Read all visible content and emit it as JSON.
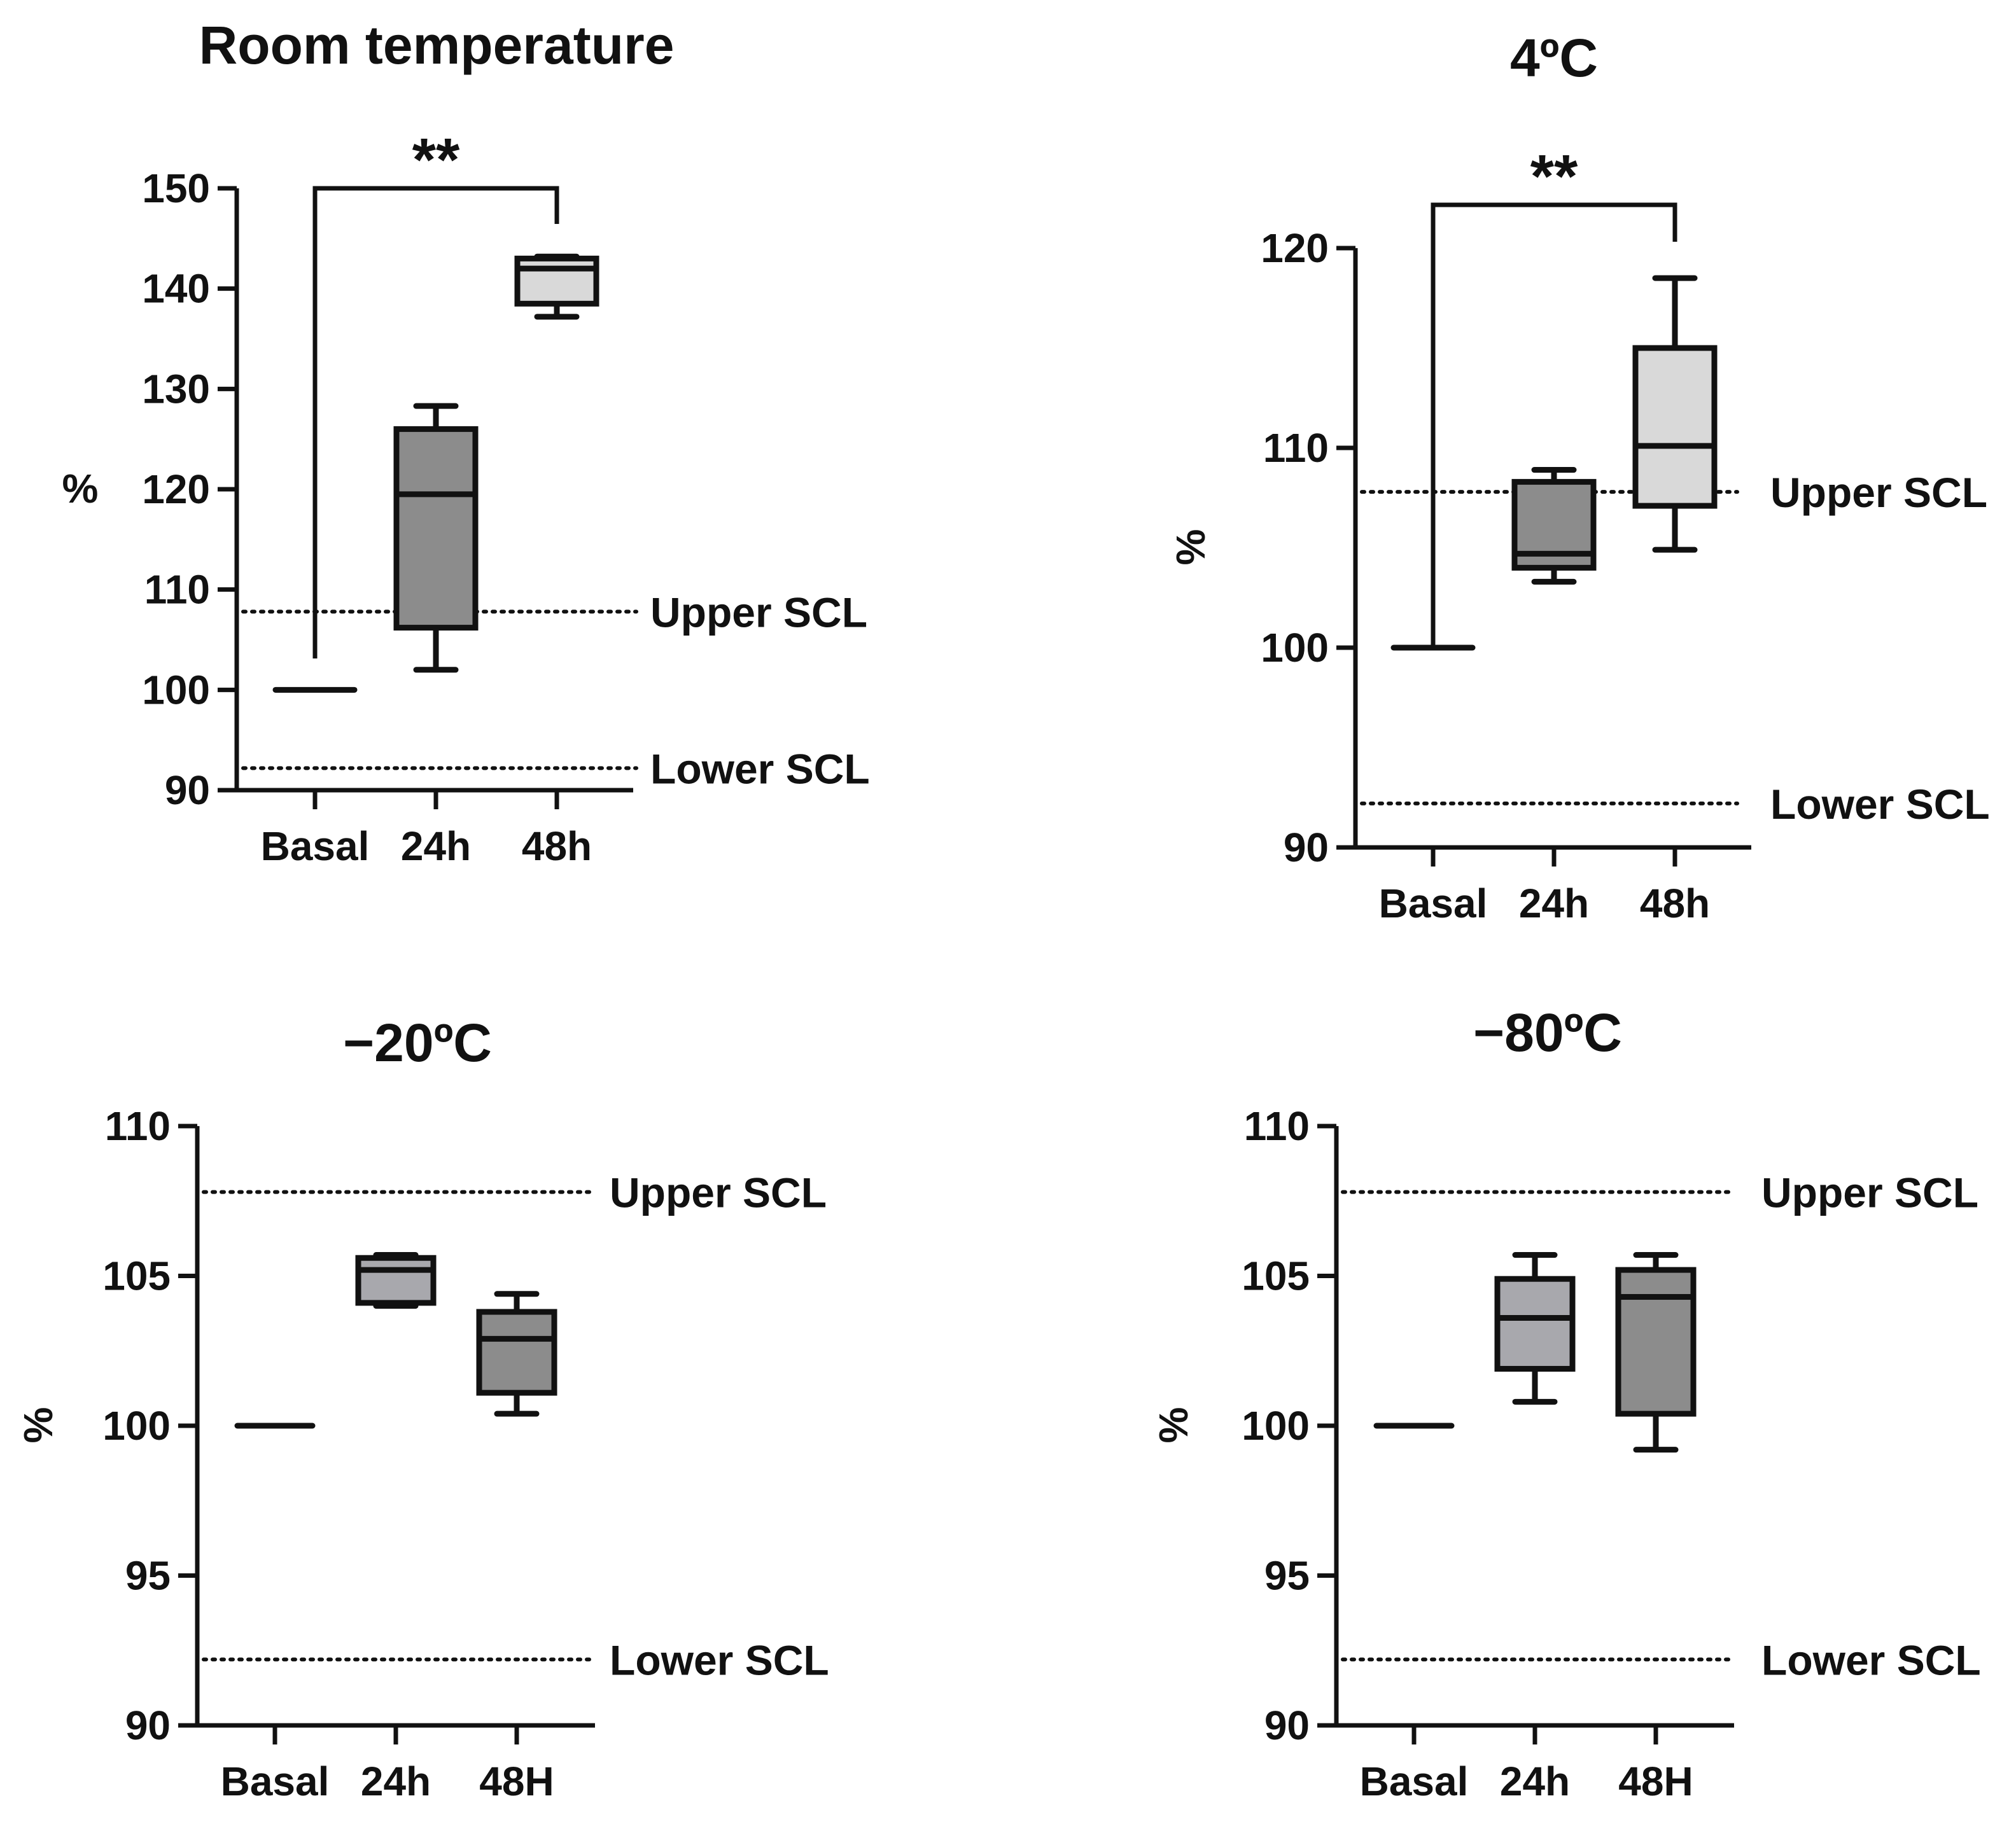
{
  "chart_data": [
    {
      "type": "box",
      "title": "Room temperature",
      "ylabel": "%",
      "xlabel": "",
      "ylim": [
        90,
        150
      ],
      "yticks": [
        90,
        100,
        110,
        120,
        130,
        140,
        150
      ],
      "categories": [
        "Basal",
        "24h",
        "48h"
      ],
      "boxes": [
        {
          "category": "Basal",
          "min": 100,
          "q1": 100,
          "median": 100,
          "q3": 100,
          "max": 100,
          "fill": "#000000"
        },
        {
          "category": "24h",
          "min": 102,
          "q1": 106.2,
          "median": 119.5,
          "q3": 126,
          "max": 128.3,
          "fill": "#8c8c8c"
        },
        {
          "category": "48h",
          "min": 137.2,
          "q1": 138.5,
          "median": 142,
          "q3": 143,
          "max": 143.2,
          "fill": "#d9d9d9"
        }
      ],
      "reference_lines": [
        {
          "label": "Upper SCL",
          "value": 107.8
        },
        {
          "label": "Lower SCL",
          "value": 92.2
        }
      ],
      "significance": {
        "from": "Basal",
        "to": "48h",
        "label": "**"
      }
    },
    {
      "type": "box",
      "title": "4ºC",
      "ylabel": "%",
      "xlabel": "",
      "ylim": [
        90,
        120
      ],
      "yticks": [
        90,
        100,
        110,
        120
      ],
      "categories": [
        "Basal",
        "24h",
        "48h"
      ],
      "boxes": [
        {
          "category": "Basal",
          "min": 100,
          "q1": 100,
          "median": 100,
          "q3": 100,
          "max": 100,
          "fill": "#000000"
        },
        {
          "category": "24h",
          "min": 103.3,
          "q1": 104,
          "median": 104.7,
          "q3": 108.3,
          "max": 108.9,
          "fill": "#8c8c8c"
        },
        {
          "category": "48h",
          "min": 104.9,
          "q1": 107.1,
          "median": 110.1,
          "q3": 115,
          "max": 118.5,
          "fill": "#d9d9d9"
        }
      ],
      "reference_lines": [
        {
          "label": "Upper SCL",
          "value": 107.8
        },
        {
          "label": "Lower SCL",
          "value": 92.2
        }
      ],
      "significance": {
        "from": "Basal",
        "to": "48h",
        "label": "**"
      }
    },
    {
      "type": "box",
      "title": "−20ºC",
      "ylabel": "%",
      "xlabel": "",
      "ylim": [
        90,
        110
      ],
      "yticks": [
        90,
        95,
        100,
        105,
        110
      ],
      "categories": [
        "Basal",
        "24h",
        "48H"
      ],
      "boxes": [
        {
          "category": "Basal",
          "min": 100,
          "q1": 100,
          "median": 100,
          "q3": 100,
          "max": 100,
          "fill": "#000000"
        },
        {
          "category": "24h",
          "min": 104,
          "q1": 104.1,
          "median": 105.2,
          "q3": 105.6,
          "max": 105.7,
          "fill": "#a8a8ad"
        },
        {
          "category": "48H",
          "min": 100.4,
          "q1": 101.1,
          "median": 102.9,
          "q3": 103.8,
          "max": 104.4,
          "fill": "#8c8c8c"
        }
      ],
      "reference_lines": [
        {
          "label": "Upper SCL",
          "value": 107.8
        },
        {
          "label": "Lower SCL",
          "value": 92.2
        }
      ]
    },
    {
      "type": "box",
      "title": "−80ºC",
      "ylabel": "%",
      "xlabel": "",
      "ylim": [
        90,
        110
      ],
      "yticks": [
        90,
        95,
        100,
        105,
        110
      ],
      "categories": [
        "Basal",
        "24h",
        "48H"
      ],
      "boxes": [
        {
          "category": "Basal",
          "min": 100,
          "q1": 100,
          "median": 100,
          "q3": 100,
          "max": 100,
          "fill": "#000000"
        },
        {
          "category": "24h",
          "min": 100.8,
          "q1": 101.9,
          "median": 103.6,
          "q3": 104.9,
          "max": 105.7,
          "fill": "#a8a8ad"
        },
        {
          "category": "48H",
          "min": 99.2,
          "q1": 100.4,
          "median": 104.3,
          "q3": 105.2,
          "max": 105.7,
          "fill": "#8c8c8c"
        }
      ],
      "reference_lines": [
        {
          "label": "Upper SCL",
          "value": 107.8
        },
        {
          "label": "Lower SCL",
          "value": 92.2
        }
      ]
    }
  ]
}
